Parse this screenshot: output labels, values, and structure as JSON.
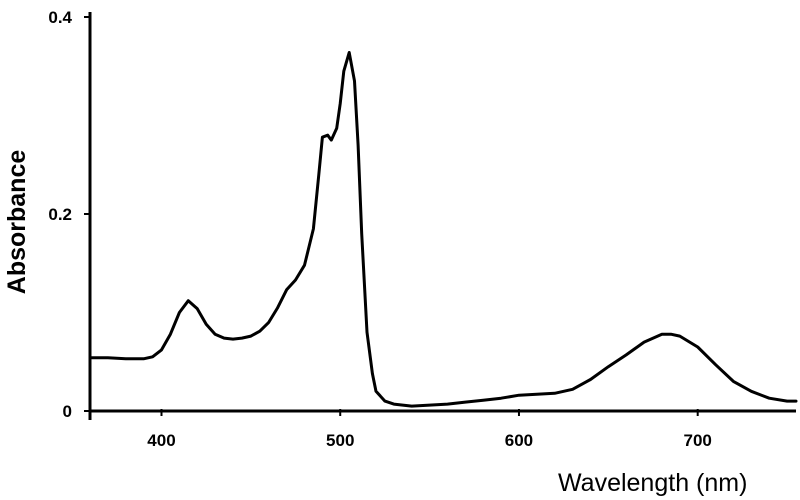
{
  "chart_data": {
    "type": "line",
    "title": "",
    "xlabel": "Wavelength (nm)",
    "ylabel": "Absorbance",
    "xlim": [
      360,
      755
    ],
    "ylim": [
      0,
      0.4
    ],
    "x_ticks": [
      400,
      500,
      600,
      700
    ],
    "y_ticks": [
      0,
      0.2,
      0.4
    ],
    "x_tick_labels": [
      "400",
      "500",
      "600",
      "700"
    ],
    "y_tick_labels": [
      "0",
      "0.2",
      "0.4"
    ],
    "grid": false,
    "legend": "none",
    "line_color": "#000000",
    "series": [
      {
        "x": [
          360,
          370,
          380,
          390,
          395,
          400,
          405,
          410,
          415,
          420,
          425,
          430,
          435,
          440,
          445,
          450,
          455,
          460,
          465,
          470,
          475,
          480,
          485,
          488,
          490,
          493,
          495,
          498,
          500,
          502,
          505,
          508,
          510,
          512,
          515,
          518,
          520,
          525,
          530,
          540,
          550,
          560,
          570,
          580,
          590,
          600,
          610,
          620,
          630,
          640,
          650,
          660,
          670,
          680,
          685,
          690,
          700,
          710,
          720,
          730,
          740,
          750,
          755
        ],
        "y": [
          0.054,
          0.054,
          0.053,
          0.053,
          0.055,
          0.062,
          0.078,
          0.1,
          0.112,
          0.104,
          0.088,
          0.078,
          0.074,
          0.073,
          0.074,
          0.076,
          0.081,
          0.09,
          0.105,
          0.123,
          0.133,
          0.148,
          0.185,
          0.24,
          0.278,
          0.28,
          0.275,
          0.287,
          0.312,
          0.345,
          0.364,
          0.335,
          0.27,
          0.18,
          0.08,
          0.038,
          0.02,
          0.01,
          0.007,
          0.005,
          0.006,
          0.007,
          0.009,
          0.011,
          0.013,
          0.016,
          0.017,
          0.018,
          0.022,
          0.032,
          0.045,
          0.057,
          0.07,
          0.078,
          0.078,
          0.076,
          0.065,
          0.047,
          0.03,
          0.02,
          0.013,
          0.01,
          0.01
        ]
      }
    ]
  }
}
